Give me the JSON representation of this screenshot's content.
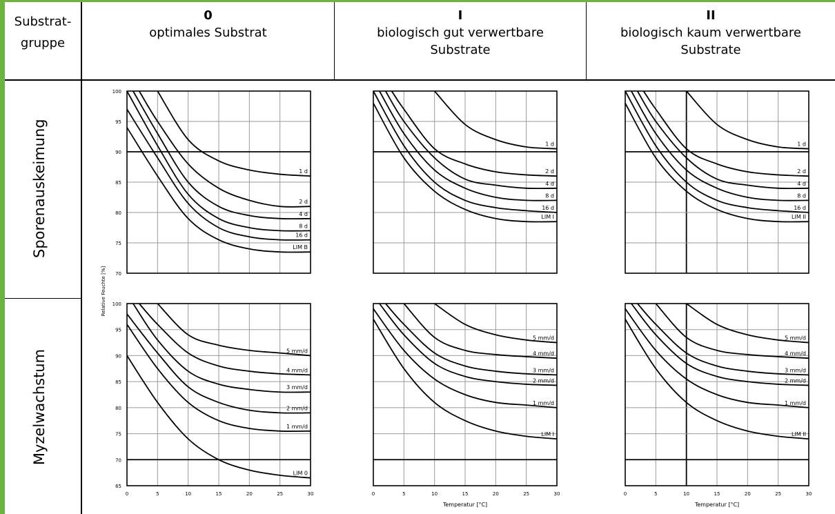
{
  "header": {
    "group_label": "Substrat-\ngruppe",
    "col0_num": "0",
    "col0_text": "optimales Substrat",
    "col1_num": "I",
    "col1_text": "biologisch gut verwertbare\nSubstrate",
    "col2_num": "II",
    "col2_text": "biologisch kaum verwertbare\nSubstrate"
  },
  "rows": {
    "row0": "Sporenauskeimung",
    "row1": "Myzelwachstum"
  },
  "colors": {
    "frame": "#6cb33f",
    "grid": "#000000"
  },
  "chart_data": [
    {
      "type": "line",
      "id": "spore-0",
      "ylabel": "Relative Feuchte [%]",
      "xlabel": "",
      "xlim": [
        0,
        30
      ],
      "ylim": [
        70,
        100
      ],
      "yticks": [
        "100",
        "95",
        "90",
        "85",
        "80",
        "75",
        "70"
      ],
      "xticks": [],
      "series": [
        {
          "name": "1 d",
          "x": [
            5,
            10,
            15,
            20,
            25,
            30
          ],
          "y": [
            100,
            92,
            88.5,
            87,
            86.3,
            86
          ]
        },
        {
          "name": "2 d",
          "x": [
            2,
            5,
            10,
            15,
            20,
            25,
            30
          ],
          "y": [
            100,
            95,
            88,
            84,
            82,
            81,
            81
          ]
        },
        {
          "name": "4 d",
          "x": [
            1,
            5,
            10,
            15,
            20,
            25,
            30
          ],
          "y": [
            100,
            93,
            85,
            81,
            79.5,
            79,
            79
          ]
        },
        {
          "name": "8 d",
          "x": [
            0,
            5,
            10,
            15,
            20,
            25,
            30
          ],
          "y": [
            100,
            91,
            83,
            79,
            77.5,
            77,
            77
          ]
        },
        {
          "name": "16 d",
          "x": [
            0,
            5,
            10,
            15,
            20,
            25,
            30
          ],
          "y": [
            97,
            89,
            81.5,
            77.5,
            76,
            75.5,
            75.5
          ]
        },
        {
          "name": "LIM B",
          "x": [
            0,
            5,
            10,
            15,
            20,
            25,
            30
          ],
          "y": [
            94,
            86,
            79,
            75.5,
            74,
            73.5,
            73.5
          ]
        }
      ]
    },
    {
      "type": "line",
      "id": "spore-1",
      "xlim": [
        0,
        30
      ],
      "ylim": [
        70,
        100
      ],
      "series": [
        {
          "name": "1 d",
          "x": [
            10,
            15,
            20,
            25,
            30
          ],
          "y": [
            100,
            94.5,
            92,
            90.8,
            90.5
          ]
        },
        {
          "name": "2 d",
          "x": [
            3,
            5,
            10,
            15,
            20,
            25,
            30
          ],
          "y": [
            100,
            97,
            90.5,
            88,
            86.7,
            86.2,
            86
          ]
        },
        {
          "name": "4 d",
          "x": [
            2,
            5,
            10,
            15,
            20,
            25,
            30
          ],
          "y": [
            100,
            95,
            89,
            85.5,
            84.5,
            84,
            84
          ]
        },
        {
          "name": "8 d",
          "x": [
            1,
            5,
            10,
            15,
            20,
            25,
            30
          ],
          "y": [
            100,
            93,
            87,
            84,
            82.5,
            82,
            82
          ]
        },
        {
          "name": "16 d",
          "x": [
            0,
            5,
            10,
            15,
            20,
            25,
            30
          ],
          "y": [
            100,
            91,
            85,
            82,
            80.8,
            80.3,
            80
          ]
        },
        {
          "name": "LIM I",
          "x": [
            0,
            5,
            10,
            15,
            20,
            25,
            30
          ],
          "y": [
            98,
            89,
            83.5,
            80.5,
            79,
            78.5,
            78.5
          ]
        }
      ]
    },
    {
      "type": "line",
      "id": "spore-2",
      "xlim": [
        0,
        30
      ],
      "ylim": [
        70,
        100
      ],
      "series": [
        {
          "name": "1 d",
          "x": [
            10,
            15,
            20,
            25,
            30
          ],
          "y": [
            100,
            94.5,
            92,
            90.8,
            90.5
          ]
        },
        {
          "name": "2 d",
          "x": [
            3,
            5,
            10,
            15,
            20,
            25,
            30
          ],
          "y": [
            100,
            97,
            90.5,
            88,
            86.7,
            86.2,
            86
          ]
        },
        {
          "name": "4 d",
          "x": [
            2,
            5,
            10,
            15,
            20,
            25,
            30
          ],
          "y": [
            100,
            95,
            89,
            85.5,
            84.5,
            84,
            84
          ]
        },
        {
          "name": "8 d",
          "x": [
            1,
            5,
            10,
            15,
            20,
            25,
            30
          ],
          "y": [
            100,
            93,
            87,
            84,
            82.5,
            82,
            82
          ]
        },
        {
          "name": "16 d",
          "x": [
            0,
            5,
            10,
            15,
            20,
            25,
            30
          ],
          "y": [
            100,
            91,
            85,
            82,
            80.8,
            80.3,
            80
          ]
        },
        {
          "name": "LIM II",
          "x": [
            0,
            5,
            10,
            15,
            20,
            25,
            30
          ],
          "y": [
            98,
            89,
            83.5,
            80.5,
            79,
            78.5,
            78.5
          ]
        }
      ]
    },
    {
      "type": "line",
      "id": "myzel-0",
      "xlabel": "",
      "xlim": [
        0,
        30
      ],
      "ylim": [
        65,
        100
      ],
      "yticks": [
        "100",
        "95",
        "90",
        "85",
        "80",
        "75",
        "70",
        "65"
      ],
      "xticks": [
        "0",
        "5",
        "10",
        "15",
        "20",
        "25",
        "30"
      ],
      "series": [
        {
          "name": "5 mm/d",
          "x": [
            5,
            10,
            15,
            20,
            25,
            30
          ],
          "y": [
            100,
            94,
            92,
            91,
            90.5,
            90
          ]
        },
        {
          "name": "4 mm/d",
          "x": [
            2,
            5,
            10,
            15,
            20,
            25,
            30
          ],
          "y": [
            100,
            96,
            90.5,
            88,
            87,
            86.5,
            86.3
          ]
        },
        {
          "name": "3 mm/d",
          "x": [
            1,
            5,
            10,
            15,
            20,
            25,
            30
          ],
          "y": [
            100,
            93,
            87,
            84.5,
            83.5,
            83,
            83
          ]
        },
        {
          "name": "2 mm/d",
          "x": [
            0,
            5,
            10,
            15,
            20,
            25,
            30
          ],
          "y": [
            98,
            90.5,
            84,
            81,
            79.5,
            79,
            79
          ]
        },
        {
          "name": "1 mm/d",
          "x": [
            0,
            5,
            10,
            15,
            20,
            25,
            30
          ],
          "y": [
            96,
            87.5,
            81,
            77.5,
            76,
            75.5,
            75.5
          ]
        },
        {
          "name": "LIM 0",
          "x": [
            0,
            5,
            10,
            15,
            20,
            25,
            30
          ],
          "y": [
            90,
            81,
            74,
            70,
            68,
            67,
            66.5
          ]
        }
      ]
    },
    {
      "type": "line",
      "id": "myzel-1",
      "xlabel": "Temperatur [°C]",
      "xlim": [
        0,
        30
      ],
      "ylim": [
        65,
        100
      ],
      "xticks": [
        "0",
        "5",
        "10",
        "15",
        "20",
        "25",
        "30"
      ],
      "series": [
        {
          "name": "5 mm/d",
          "x": [
            10,
            15,
            20,
            25,
            30
          ],
          "y": [
            100,
            96,
            94,
            93,
            92.5
          ]
        },
        {
          "name": "4 mm/d",
          "x": [
            5,
            10,
            15,
            20,
            25,
            30
          ],
          "y": [
            100,
            93.5,
            91,
            90.2,
            89.8,
            89.5
          ]
        },
        {
          "name": "3 mm/d",
          "x": [
            2,
            5,
            10,
            15,
            20,
            25,
            30
          ],
          "y": [
            100,
            96,
            90.5,
            88,
            87,
            86.5,
            86.3
          ]
        },
        {
          "name": "2 mm/d",
          "x": [
            1,
            5,
            10,
            15,
            20,
            25,
            30
          ],
          "y": [
            100,
            94,
            88.5,
            86,
            85,
            84.5,
            84.3
          ]
        },
        {
          "name": "1 mm/d",
          "x": [
            0,
            5,
            10,
            15,
            20,
            25,
            30
          ],
          "y": [
            99,
            91,
            85.5,
            82.5,
            81,
            80.5,
            80
          ]
        },
        {
          "name": "LIM I",
          "x": [
            0,
            5,
            10,
            15,
            20,
            25,
            30
          ],
          "y": [
            97,
            87.5,
            81,
            77.5,
            75.5,
            74.5,
            74
          ]
        }
      ]
    },
    {
      "type": "line",
      "id": "myzel-2",
      "xlabel": "Temperatur [°C]",
      "xlim": [
        0,
        30
      ],
      "ylim": [
        65,
        100
      ],
      "xticks": [
        "0",
        "5",
        "10",
        "15",
        "20",
        "25",
        "30"
      ],
      "series": [
        {
          "name": "5 mm/d",
          "x": [
            10,
            15,
            20,
            25,
            30
          ],
          "y": [
            100,
            96,
            94,
            93,
            92.5
          ]
        },
        {
          "name": "4 mm/d",
          "x": [
            5,
            10,
            15,
            20,
            25,
            30
          ],
          "y": [
            100,
            93.5,
            91,
            90.2,
            89.8,
            89.5
          ]
        },
        {
          "name": "3 mm/d",
          "x": [
            2,
            5,
            10,
            15,
            20,
            25,
            30
          ],
          "y": [
            100,
            96,
            90.5,
            88,
            87,
            86.5,
            86.3
          ]
        },
        {
          "name": "2 mm/d",
          "x": [
            1,
            5,
            10,
            15,
            20,
            25,
            30
          ],
          "y": [
            100,
            94,
            88.5,
            86,
            85,
            84.5,
            84.3
          ]
        },
        {
          "name": "1 mm/d",
          "x": [
            0,
            5,
            10,
            15,
            20,
            25,
            30
          ],
          "y": [
            99,
            91,
            85.5,
            82.5,
            81,
            80.5,
            80
          ]
        },
        {
          "name": "LIM II",
          "x": [
            0,
            5,
            10,
            15,
            20,
            25,
            30
          ],
          "y": [
            97,
            87.5,
            81,
            77.5,
            75.5,
            74.5,
            74
          ]
        }
      ]
    }
  ]
}
